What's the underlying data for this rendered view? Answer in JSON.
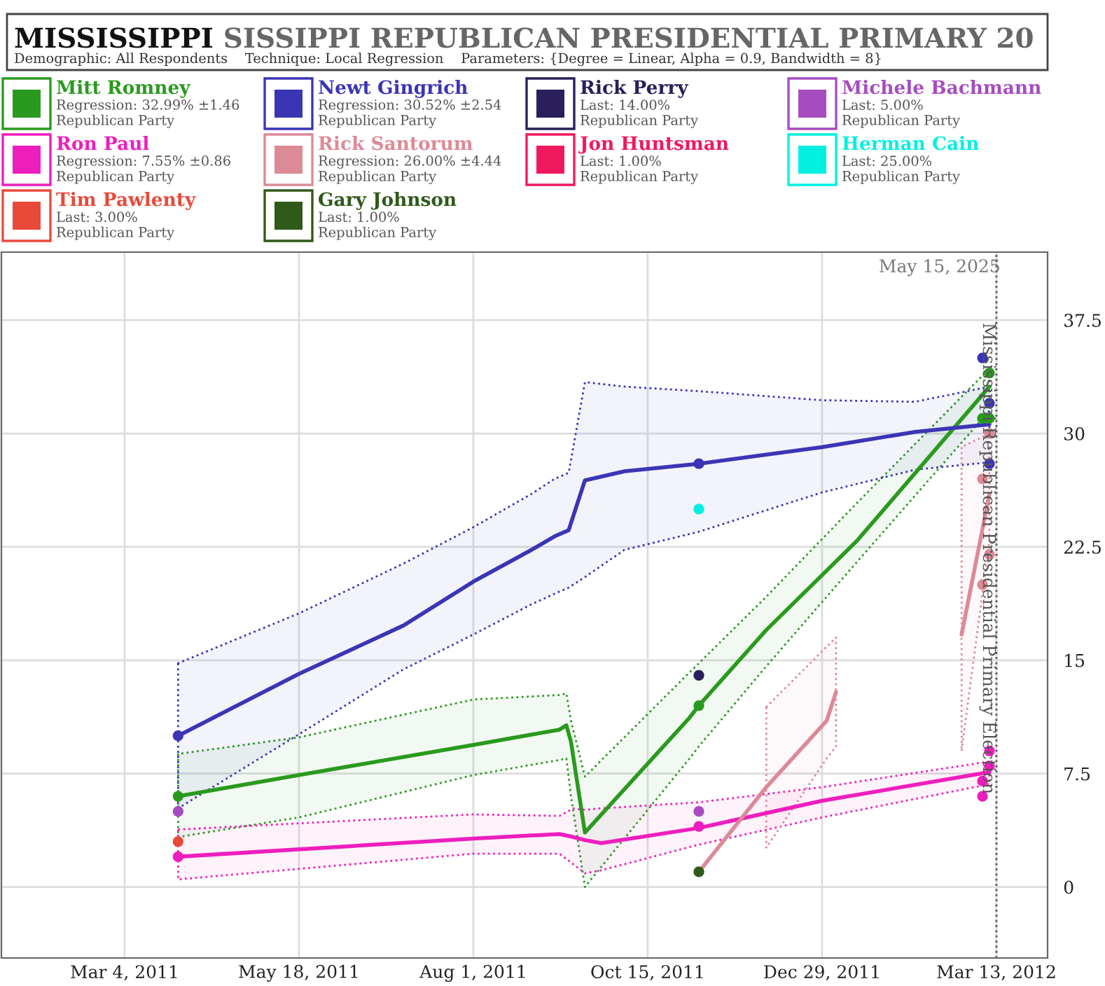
{
  "chart_data": {
    "type": "line",
    "title": "MISSISSIPPI",
    "subtitle": "SISSIPPI REPUBLICAN PRESIDENTIAL PRIMARY 20",
    "annotations": [
      "Demographic: All Respondents    Technique: Local Regression    Parameters: {Degree = Linear, Alpha = 0.9, Bandwidth = 8}",
      "May 15, 2025",
      "Regression: 32.99% ±1.46\nRepublican Party",
      "Regression: 30.52% ±2.54\nRepublican Party",
      "Last: 14.00%\nRepublican Party",
      "Last: 5.00%\nRepublican Party",
      "Regression: 7.55% ±0.86\nRepublican Party",
      "Regression: 26.00% ±4.44\nRepublican Party",
      "Last: 1.00%\nRepublican Party",
      "Last: 25.00%\nRepublican Party",
      "Last: 3.00%\nRepublican Party",
      "Last: 1.00%\nRepublican Party"
    ],
    "xlim": [
      "2011-01-10",
      "2012-04-04"
    ],
    "xticks": [
      {
        "value": "2011-03-04",
        "label": "Mar 4, 2011"
      },
      {
        "value": "2011-05-18",
        "label": "May 18, 2011"
      },
      {
        "value": "2011-08-01",
        "label": "Aug 1, 2011"
      },
      {
        "value": "2011-10-15",
        "label": "Oct 15, 2011"
      },
      {
        "value": "2011-12-29",
        "label": "Dec 29, 2011"
      },
      {
        "value": "2012-03-13",
        "label": "Mar 13, 2012"
      }
    ],
    "ylim": [
      -4.7,
      42
    ],
    "yticks": [
      0,
      7.5,
      15,
      22.5,
      30,
      37.5
    ],
    "grid": true,
    "legend": "top",
    "marker": "circle",
    "line_style": "solid",
    "ref_lines": [
      {
        "axis": "x",
        "value": "2012-03-13",
        "label": "Mississippi Republican Presidential Primary Election",
        "color": "#555555",
        "line_style": "dotted"
      }
    ],
    "series": [
      {
        "name": "Mitt Romney",
        "marker": "none",
        "color": "#2a9a1e",
        "x": [
          "2011-03-27",
          "2011-05-18",
          "2011-08-01",
          "2011-09-07",
          "2011-09-10",
          "2011-09-12",
          "2011-09-18",
          "2011-11-02",
          "2011-11-06",
          "2011-12-05",
          "2012-01-13",
          "2012-03-10"
        ],
        "values": [
          6,
          7.4,
          9.4,
          10.4,
          10.7,
          9.6,
          3.6,
          11.2,
          12,
          17,
          22.9,
          33.1
        ],
        "lower": [
          3.3,
          4.6,
          7.4,
          8.4,
          8.5,
          6,
          0,
          8.5,
          9.3,
          14.6,
          21.5,
          31.5
        ],
        "upper": [
          8.8,
          9.9,
          12.4,
          12.7,
          12.8,
          11,
          7.3,
          14.2,
          14.8,
          19.2,
          25.4,
          34.3
        ]
      },
      {
        "name": "Newt Gingrich",
        "marker": "none",
        "color": "#3b35b5",
        "x": [
          "2011-03-27",
          "2011-05-18",
          "2011-07-02",
          "2011-08-01",
          "2011-08-26",
          "2011-09-05",
          "2011-09-11",
          "2011-09-18",
          "2011-10-05",
          "2011-11-06",
          "2011-12-29",
          "2012-02-07",
          "2012-03-10"
        ],
        "values": [
          10,
          14.1,
          17.3,
          20.2,
          22.3,
          23.2,
          23.6,
          26.9,
          27.5,
          28,
          29.1,
          30.1,
          30.6
        ],
        "lower": [
          5.2,
          10.1,
          14.4,
          16.7,
          18.7,
          19.4,
          19.8,
          20.5,
          22.3,
          23.5,
          26.1,
          27.6,
          28.1
        ],
        "upper": [
          14.8,
          18.1,
          21.4,
          23.8,
          26,
          27,
          27.4,
          33.4,
          33.1,
          32.8,
          32.2,
          32.1,
          33.1
        ]
      },
      {
        "name": "Rick Perry",
        "type": "scatter",
        "color": "#2a1f5a",
        "x": [
          "2011-11-06"
        ],
        "values": [
          14
        ]
      },
      {
        "name": "Michele Bachmann",
        "type": "scatter",
        "color": "#a64cc0",
        "x": [
          "2011-03-27",
          "2011-11-06"
        ],
        "values": [
          5,
          5
        ]
      },
      {
        "name": "Ron Paul",
        "marker": "none",
        "color": "#ee1ebd",
        "x": [
          "2011-03-27",
          "2011-08-01",
          "2011-09-07",
          "2011-09-13",
          "2011-09-18",
          "2011-09-25",
          "2011-11-06",
          "2011-12-29",
          "2012-03-10"
        ],
        "values": [
          2,
          3.2,
          3.5,
          3.3,
          3.1,
          2.9,
          3.9,
          5.7,
          7.6
        ],
        "lower": [
          0.5,
          2.2,
          2.2,
          1.5,
          0.9,
          1.1,
          2.8,
          4.6,
          6.8
        ],
        "upper": [
          3.8,
          4.8,
          4.7,
          5.2,
          5.1,
          5.2,
          5.6,
          6.6,
          8.3
        ]
      },
      {
        "name": "Rick Santorum",
        "marker": "none",
        "color": "#dc8a96",
        "x": [
          "2011-11-06",
          "2011-12-05",
          "2011-12-31",
          "2012-01-04",
          "2012-01-07",
          "2012-02-27",
          "2012-03-10"
        ],
        "values": [
          1,
          6.6,
          11,
          12.9,
          null,
          16.7,
          26
        ],
        "lower": [
          null,
          2.6,
          8.5,
          9.3,
          null,
          9,
          22.9
        ],
        "upper": [
          null,
          11.9,
          15.9,
          16.5,
          null,
          29.1,
          30
        ]
      },
      {
        "name": "Jon Huntsman",
        "type": "scatter",
        "color": "#f0195e"
      },
      {
        "name": "Herman Cain",
        "type": "scatter",
        "color": "#00f0e0",
        "x": [
          "2011-11-06"
        ],
        "values": [
          25
        ]
      },
      {
        "name": "Tim Pawlenty",
        "type": "scatter",
        "color": "#e84a3a",
        "x": [
          "2011-03-27"
        ],
        "values": [
          3
        ]
      },
      {
        "name": "Gary Johnson",
        "type": "scatter",
        "color": "#2f5a1a",
        "x": [
          "2011-11-06"
        ],
        "values": [
          1
        ]
      },
      {
        "type": "scatter",
        "color": "#2a9a1e",
        "x": [
          "2011-03-27",
          "2011-11-06",
          "2012-03-07",
          "2012-03-10",
          "2012-03-10"
        ],
        "values": [
          6,
          12,
          31,
          34,
          31
        ]
      },
      {
        "type": "scatter",
        "color": "#3b35b5",
        "x": [
          "2011-03-27",
          "2011-11-06",
          "2012-03-07",
          "2012-03-10",
          "2012-03-10"
        ],
        "values": [
          10,
          28,
          35,
          32,
          28
        ]
      },
      {
        "type": "scatter",
        "color": "#ee1ebd",
        "x": [
          "2011-03-27",
          "2011-11-06",
          "2012-03-07",
          "2012-03-07",
          "2012-03-10",
          "2012-03-10"
        ],
        "values": [
          2,
          4,
          7,
          6,
          9,
          8
        ]
      },
      {
        "type": "scatter",
        "color": "#dc8a96",
        "x": [
          "2012-03-07",
          "2012-03-07",
          "2012-03-10",
          "2012-03-10"
        ],
        "values": [
          27,
          20,
          30,
          22
        ]
      }
    ]
  }
}
